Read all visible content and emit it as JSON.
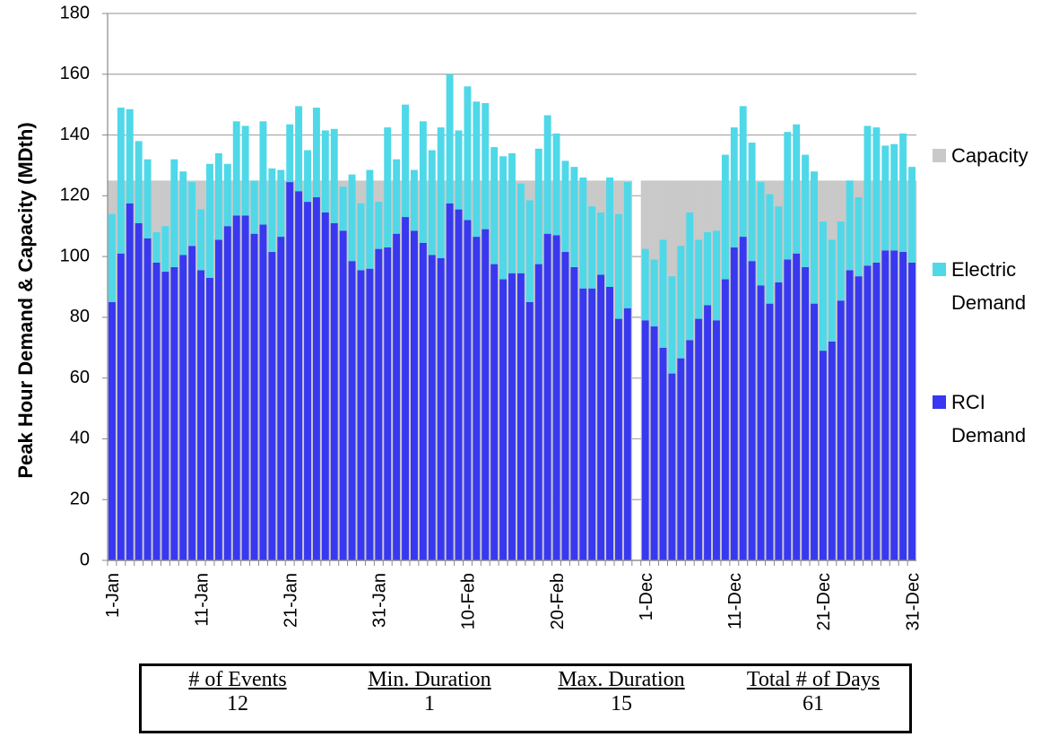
{
  "chart_data": {
    "type": "stacked_bar",
    "y_label": "Peak Hour Demand & Capacity (MDth)",
    "categories": [
      "1-Jan",
      null,
      null,
      null,
      null,
      null,
      null,
      null,
      null,
      null,
      "11-Jan",
      null,
      null,
      null,
      null,
      null,
      null,
      null,
      null,
      null,
      "21-Jan",
      null,
      null,
      null,
      null,
      null,
      null,
      null,
      null,
      null,
      "31-Jan",
      null,
      null,
      null,
      null,
      null,
      null,
      null,
      null,
      null,
      "10-Feb",
      null,
      null,
      null,
      null,
      null,
      null,
      null,
      null,
      null,
      "20-Feb",
      null,
      null,
      null,
      null,
      null,
      null,
      null,
      null,
      null,
      "1-Dec",
      null,
      null,
      null,
      null,
      null,
      null,
      null,
      null,
      null,
      "11-Dec",
      null,
      null,
      null,
      null,
      null,
      null,
      null,
      null,
      null,
      "21-Dec",
      null,
      null,
      null,
      null,
      null,
      null,
      null,
      null,
      null,
      "31-Dec"
    ],
    "series": [
      {
        "name": "Capacity",
        "color": "#c9c9c9",
        "background": true,
        "values": [
          125,
          125,
          125,
          125,
          125,
          125,
          125,
          125,
          125,
          125,
          125,
          125,
          125,
          125,
          125,
          125,
          125,
          125,
          125,
          125,
          125,
          125,
          125,
          125,
          125,
          125,
          125,
          125,
          125,
          125,
          125,
          125,
          125,
          125,
          125,
          125,
          125,
          125,
          125,
          125,
          125,
          125,
          125,
          125,
          125,
          125,
          125,
          125,
          125,
          125,
          125,
          125,
          125,
          125,
          125,
          125,
          125,
          125,
          125,
          null,
          125,
          125,
          125,
          125,
          125,
          125,
          125,
          125,
          125,
          125,
          125,
          125,
          125,
          125,
          125,
          125,
          125,
          125,
          125,
          125,
          125,
          125,
          125,
          125,
          125,
          125,
          125,
          125,
          125,
          125,
          125
        ]
      },
      {
        "name": "Electric Demand",
        "color": "#4fd8e8",
        "stack": "demand",
        "values": [
          29,
          48,
          31,
          27,
          26,
          10,
          15,
          35.5,
          27.5,
          21,
          20,
          37.5,
          28.5,
          20.5,
          31,
          29.5,
          17.5,
          34,
          27.5,
          22,
          19,
          28,
          17,
          29.5,
          27,
          31,
          14.5,
          28.5,
          22,
          32.5,
          15.5,
          39.5,
          24.5,
          37,
          20,
          40,
          34.5,
          43,
          42.5,
          26,
          44,
          44.5,
          41.5,
          38.5,
          40.5,
          39.5,
          29.5,
          33.5,
          38,
          39,
          33.5,
          30,
          33,
          36.5,
          27,
          20.5,
          36,
          34.5,
          41.5,
          null,
          23.5,
          22,
          35.5,
          32,
          37,
          42,
          26,
          24,
          29.5,
          41,
          39.5,
          43,
          39,
          34,
          36,
          25,
          42,
          42.5,
          37,
          43.5,
          42.5,
          33.5,
          26,
          29.5,
          26,
          46,
          44.5,
          34.5,
          35,
          39,
          31.5
        ]
      },
      {
        "name": "RCI Demand",
        "color": "#3838f0",
        "stack": "demand",
        "values": [
          85,
          101,
          117.5,
          111,
          106,
          98,
          95,
          96.5,
          100.5,
          103.5,
          95.5,
          93,
          105.5,
          110,
          113.5,
          113.5,
          107.5,
          110.5,
          101.5,
          106.5,
          124.5,
          121.5,
          118,
          119.5,
          114.5,
          111,
          108.5,
          98.5,
          95.5,
          96,
          102.5,
          103,
          107.5,
          113,
          108.5,
          104.5,
          100.5,
          99.5,
          117.5,
          115.5,
          112,
          106.5,
          109,
          97.5,
          92.5,
          94.5,
          94.5,
          85,
          97.5,
          107.5,
          107,
          101.5,
          96.5,
          89.5,
          89.5,
          94,
          90,
          79.5,
          83,
          null,
          79,
          77,
          70,
          61.5,
          66.5,
          72.5,
          79.5,
          84,
          79,
          92.5,
          103,
          106.5,
          98.5,
          90.5,
          84.5,
          91.5,
          99,
          101,
          96.5,
          84.5,
          69,
          72,
          85.5,
          95.5,
          93.5,
          97,
          98,
          102,
          102,
          101.5,
          98
        ]
      }
    ],
    "ylim": [
      0,
      180
    ],
    "yticks": [
      0,
      20,
      40,
      60,
      80,
      100,
      120,
      140,
      160,
      180
    ],
    "grid": true,
    "legend": "right"
  },
  "table": {
    "headers": [
      "# of Events",
      "Min. Duration",
      "Max. Duration",
      "Total # of Days"
    ],
    "values": [
      12,
      1,
      15,
      61
    ]
  }
}
